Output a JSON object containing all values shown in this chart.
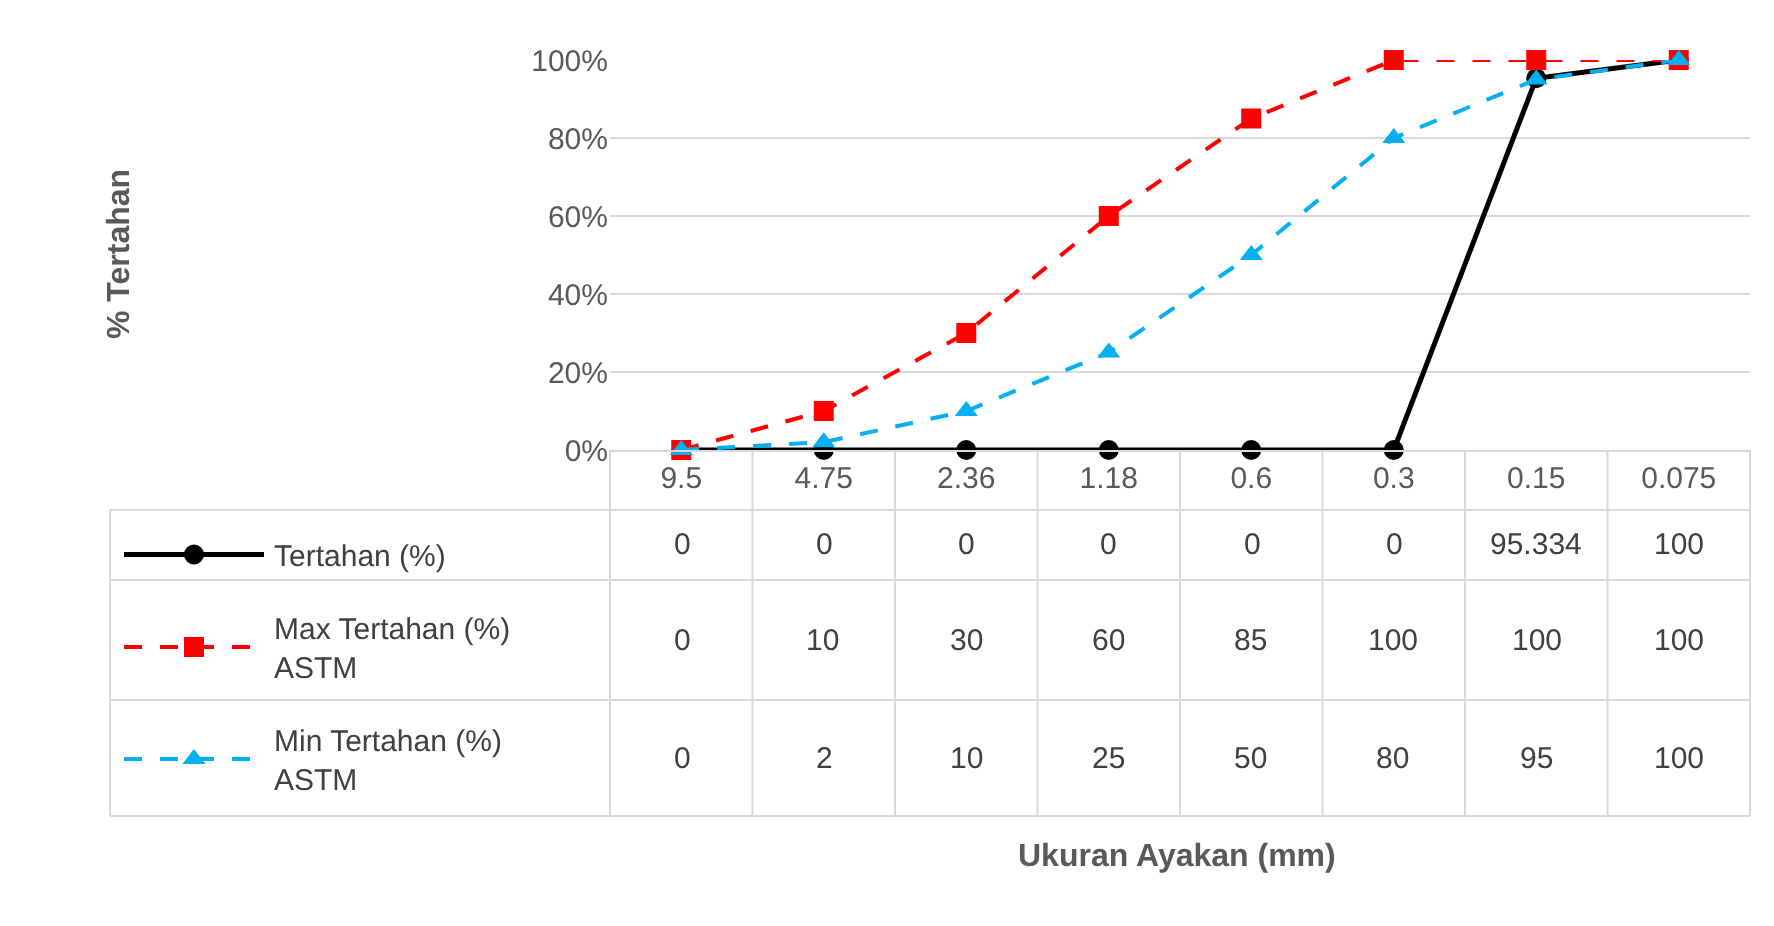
{
  "chart_data": {
    "type": "line",
    "annotations": [
      "% Tertahan",
      "Ukuran Ayakan (mm)"
    ],
    "categories": [
      "9.5",
      "4.75",
      "2.36",
      "1.18",
      "0.6",
      "0.3",
      "0.15",
      "0.075"
    ],
    "series": [
      {
        "name": "Tertahan (%)",
        "color": "#000000",
        "marker": "circle",
        "line_style": "solid",
        "values": [
          0,
          0,
          0,
          0,
          0,
          0,
          95.334,
          100
        ]
      },
      {
        "name": "Max Tertahan (%) ASTM",
        "color": "#ff0000",
        "marker": "square",
        "line_style": "dashed",
        "values": [
          0,
          10,
          30,
          60,
          85,
          100,
          100,
          100
        ]
      },
      {
        "name": "Min Tertahan (%) ASTM",
        "color": "#00b0f0",
        "marker": "triangle",
        "line_style": "dashed",
        "values": [
          0,
          2,
          10,
          25,
          50,
          80,
          95,
          100
        ]
      }
    ],
    "ylim": [
      0,
      100
    ],
    "yticks": [
      {
        "value": 0,
        "label": "0%"
      },
      {
        "value": 20,
        "label": "20%"
      },
      {
        "value": 40,
        "label": "40%"
      },
      {
        "value": 60,
        "label": "60%"
      },
      {
        "value": 80,
        "label": "80%"
      },
      {
        "value": 100,
        "label": "100%"
      }
    ],
    "grid": "y",
    "legend": "bottom left",
    "data_labels": true
  }
}
